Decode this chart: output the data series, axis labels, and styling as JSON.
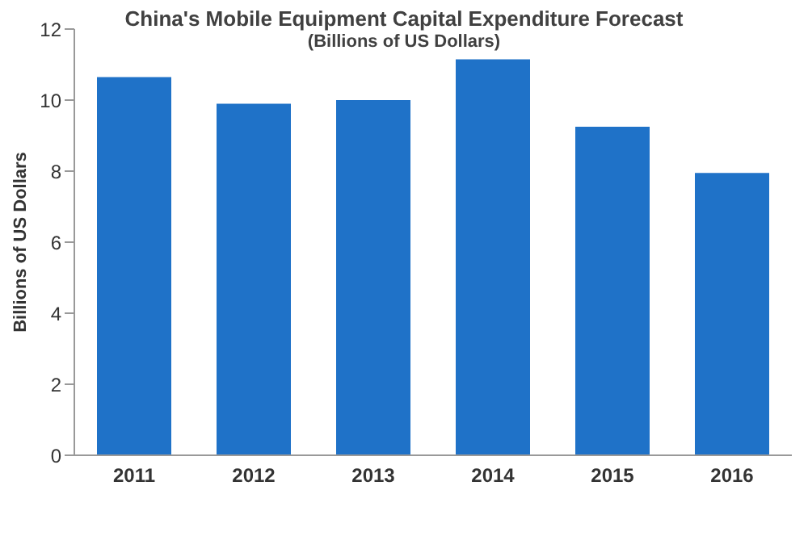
{
  "chart_data": {
    "type": "bar",
    "title": "China's Mobile Equipment Capital Expenditure Forecast",
    "subtitle": "(Billions of US Dollars)",
    "ylabel": "Billions of US Dollars",
    "categories": [
      "2011",
      "2012",
      "2013",
      "2014",
      "2015",
      "2016"
    ],
    "values": [
      10.65,
      9.9,
      10.0,
      11.15,
      9.25,
      7.95
    ],
    "color": "#1f72c8",
    "ylim": [
      0,
      12
    ],
    "yticks": [
      0,
      2,
      4,
      6,
      8,
      10,
      12
    ],
    "grid": false
  }
}
